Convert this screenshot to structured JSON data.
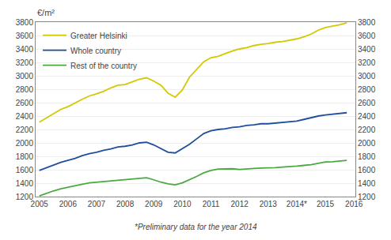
{
  "chart_data": {
    "type": "line",
    "ylabel": "€/m²",
    "annotations": [
      "*Preliminary data for the year 2014"
    ],
    "x": [
      2005,
      2005.25,
      2005.5,
      2005.75,
      2006,
      2006.25,
      2006.5,
      2006.75,
      2007,
      2007.25,
      2007.5,
      2007.75,
      2008,
      2008.25,
      2008.5,
      2008.75,
      2009,
      2009.25,
      2009.5,
      2009.75,
      2010,
      2010.25,
      2010.5,
      2010.75,
      2011,
      2011.25,
      2011.5,
      2011.75,
      2012,
      2012.25,
      2012.5,
      2012.75,
      2013,
      2013.25,
      2013.5,
      2013.75,
      2014,
      2014.25,
      2014.5,
      2014.75,
      2015,
      2015.25,
      2015.5,
      2015.75
    ],
    "series": [
      {
        "name": "Greater Helsinki",
        "color": "#d4c800",
        "values": [
          2310,
          2370,
          2430,
          2500,
          2540,
          2600,
          2650,
          2700,
          2730,
          2770,
          2820,
          2860,
          2870,
          2910,
          2950,
          2970,
          2920,
          2860,
          2740,
          2680,
          2790,
          2980,
          3100,
          3210,
          3270,
          3290,
          3330,
          3370,
          3400,
          3420,
          3450,
          3470,
          3480,
          3500,
          3510,
          3530,
          3550,
          3580,
          3620,
          3680,
          3720,
          3740,
          3760,
          3790
        ]
      },
      {
        "name": "Whole country",
        "color": "#1f4e9e",
        "values": [
          1590,
          1630,
          1670,
          1710,
          1740,
          1770,
          1810,
          1840,
          1860,
          1890,
          1910,
          1940,
          1950,
          1970,
          2000,
          2010,
          1970,
          1910,
          1860,
          1850,
          1910,
          1980,
          2060,
          2140,
          2180,
          2200,
          2210,
          2230,
          2240,
          2260,
          2270,
          2285,
          2285,
          2295,
          2305,
          2315,
          2325,
          2350,
          2375,
          2400,
          2415,
          2425,
          2440,
          2450
        ]
      },
      {
        "name": "Rest of the country",
        "color": "#4aaa40",
        "values": [
          1210,
          1250,
          1285,
          1315,
          1340,
          1365,
          1385,
          1405,
          1415,
          1425,
          1435,
          1445,
          1450,
          1460,
          1475,
          1480,
          1450,
          1415,
          1390,
          1375,
          1405,
          1450,
          1500,
          1555,
          1590,
          1610,
          1610,
          1615,
          1605,
          1615,
          1620,
          1625,
          1625,
          1630,
          1640,
          1645,
          1655,
          1665,
          1675,
          1695,
          1715,
          1720,
          1730,
          1740
        ]
      }
    ],
    "xlim": [
      2004.87,
      2016.05
    ],
    "xticks": [
      2005,
      2006,
      2007,
      2008,
      2009,
      2010,
      2011,
      2012,
      2013,
      {
        "value": 2014,
        "label": "2014*"
      },
      2015,
      2016
    ],
    "ylim": [
      1200,
      3800
    ],
    "yticks": [
      1200,
      1400,
      1600,
      1800,
      2000,
      2200,
      2400,
      2600,
      2800,
      3000,
      3200,
      3400,
      3600,
      3800
    ],
    "y2lim": [
      1200,
      3800
    ],
    "y2ticks": [
      1200,
      1400,
      1600,
      1800,
      2000,
      2200,
      2400,
      2600,
      2800,
      3000,
      3200,
      3400,
      3600,
      3800
    ],
    "grid": true,
    "legend": "upper left"
  }
}
